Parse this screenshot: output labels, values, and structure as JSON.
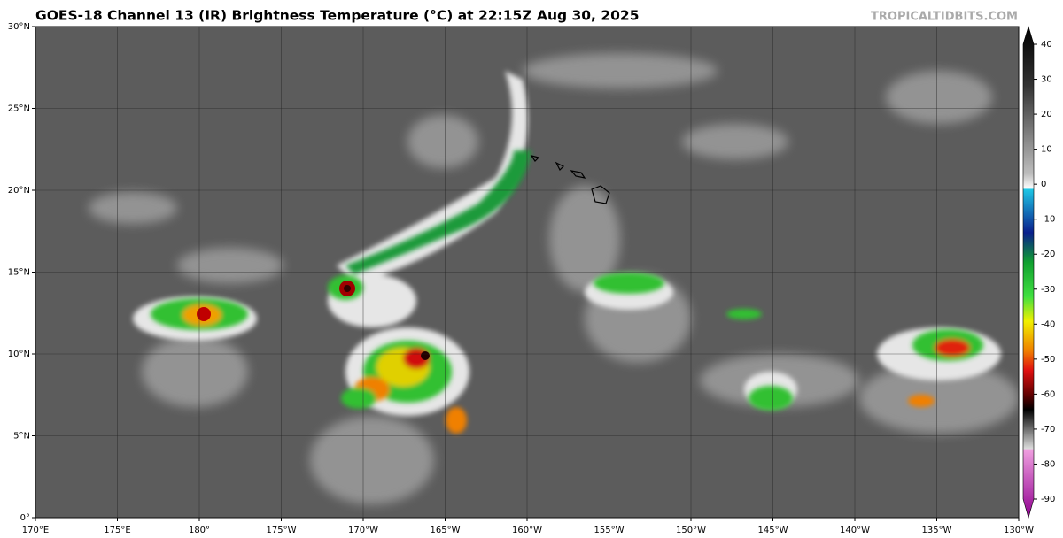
{
  "title": "GOES-18 Channel 13 (IR) Brightness Temperature (°C) at 22:15Z Aug 30, 2025",
  "watermark": "TROPICALTIDBITS.COM",
  "map": {
    "xlim": [
      170,
      230
    ],
    "xticks": [
      {
        "value": 170,
        "label": "170°E"
      },
      {
        "value": 175,
        "label": "175°E"
      },
      {
        "value": 180,
        "label": "180°"
      },
      {
        "value": 185,
        "label": "175°W"
      },
      {
        "value": 190,
        "label": "170°W"
      },
      {
        "value": 195,
        "label": "165°W"
      },
      {
        "value": 200,
        "label": "160°W"
      },
      {
        "value": 205,
        "label": "155°W"
      },
      {
        "value": 210,
        "label": "150°W"
      },
      {
        "value": 215,
        "label": "145°W"
      },
      {
        "value": 220,
        "label": "140°W"
      },
      {
        "value": 225,
        "label": "135°W"
      },
      {
        "value": 230,
        "label": "130°W"
      }
    ],
    "ylim": [
      0,
      30
    ],
    "yticks": [
      {
        "value": 0,
        "label": "0°"
      },
      {
        "value": 5,
        "label": "5°N"
      },
      {
        "value": 10,
        "label": "10°N"
      },
      {
        "value": 15,
        "label": "15°N"
      },
      {
        "value": 20,
        "label": "20°N"
      },
      {
        "value": 25,
        "label": "25°N"
      },
      {
        "value": 30,
        "label": "30°N"
      }
    ]
  },
  "colorbar": {
    "lim": [
      -90,
      40
    ],
    "ticks": [
      40,
      30,
      20,
      10,
      0,
      -10,
      -20,
      -30,
      -40,
      -50,
      -60,
      -70,
      -80,
      -90
    ]
  }
}
